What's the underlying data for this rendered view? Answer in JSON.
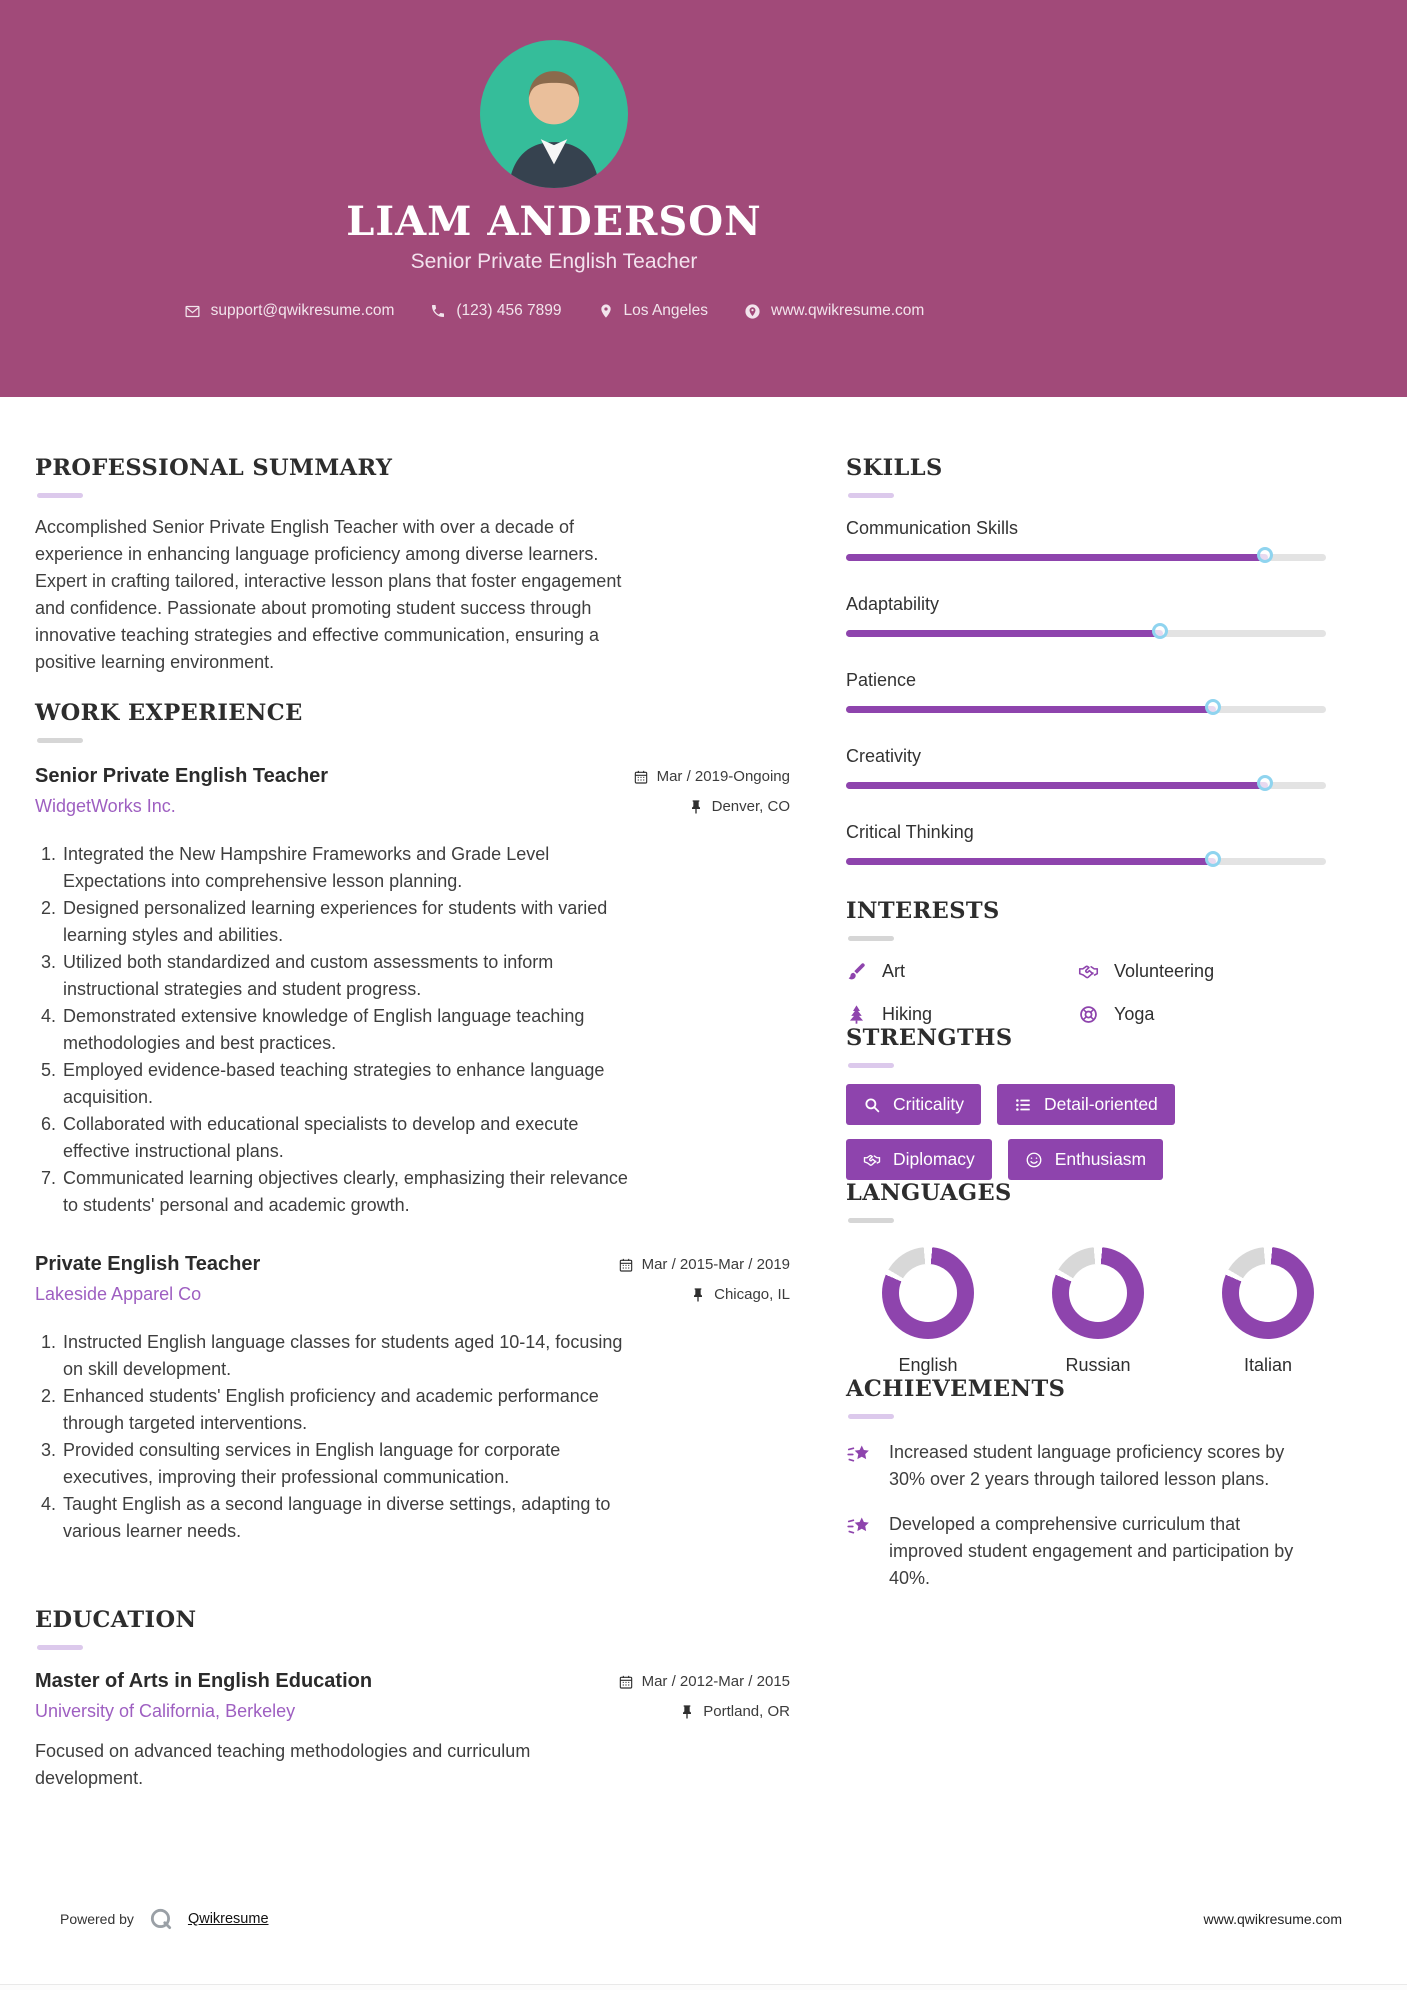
{
  "header": {
    "name": "LIAM ANDERSON",
    "title": "Senior Private English Teacher",
    "contact": {
      "email": "support@qwikresume.com",
      "phone": "(123) 456 7899",
      "location": "Los Angeles",
      "website": "www.qwikresume.com"
    }
  },
  "sections": {
    "summary": {
      "heading": "PROFESSIONAL SUMMARY",
      "text": "Accomplished Senior Private English Teacher with over a decade of experience in enhancing language proficiency among diverse learners. Expert in crafting tailored, interactive lesson plans that foster engagement and confidence. Passionate about promoting student success through innovative teaching strategies and effective communication, ensuring a positive learning environment."
    },
    "experience": {
      "heading": "WORK EXPERIENCE",
      "jobs": [
        {
          "title": "Senior Private English Teacher",
          "company": "WidgetWorks Inc.",
          "date": "Mar / 2019-Ongoing",
          "location": "Denver, CO",
          "bullets": [
            "Integrated the New Hampshire Frameworks and Grade Level Expectations into comprehensive lesson planning.",
            "Designed personalized learning experiences for students with varied learning styles and abilities.",
            "Utilized both standardized and custom assessments to inform instructional strategies and student progress.",
            "Demonstrated extensive knowledge of English language teaching methodologies and best practices.",
            "Employed evidence-based teaching strategies to enhance language acquisition.",
            "Collaborated with educational specialists to develop and execute effective instructional plans.",
            "Communicated learning objectives clearly, emphasizing their relevance to students' personal and academic growth."
          ]
        },
        {
          "title": "Private English Teacher",
          "company": "Lakeside Apparel Co",
          "date": "Mar / 2015-Mar / 2019",
          "location": "Chicago, IL",
          "bullets": [
            "Instructed English language classes for students aged 10-14, focusing on skill development.",
            "Enhanced students' English proficiency and academic performance through targeted interventions.",
            "Provided consulting services in English language for corporate executives, improving their professional communication.",
            "Taught English as a second language in diverse settings, adapting to various learner needs."
          ]
        }
      ]
    },
    "education": {
      "heading": "EDUCATION",
      "degree": "Master of Arts in English Education",
      "school": "University of California, Berkeley",
      "date": "Mar / 2012-Mar / 2015",
      "location": "Portland, OR",
      "description": "Focused on advanced teaching methodologies and curriculum development."
    },
    "skills": {
      "heading": "SKILLS",
      "items": [
        {
          "name": "Communication Skills",
          "level": 88
        },
        {
          "name": "Adaptability",
          "level": 66
        },
        {
          "name": "Patience",
          "level": 77
        },
        {
          "name": "Creativity",
          "level": 88
        },
        {
          "name": "Critical Thinking",
          "level": 77
        }
      ]
    },
    "interests": {
      "heading": "INTERESTS",
      "items": [
        {
          "label": "Art",
          "icon": "brush-icon"
        },
        {
          "label": "Volunteering",
          "icon": "handshake-icon"
        },
        {
          "label": "Hiking",
          "icon": "tree-icon"
        },
        {
          "label": "Yoga",
          "icon": "lifebuoy-icon"
        }
      ]
    },
    "strengths": {
      "heading": "STRENGTHS",
      "items": [
        {
          "label": "Criticality",
          "icon": "search-icon"
        },
        {
          "label": "Detail-oriented",
          "icon": "list-icon"
        },
        {
          "label": "Diplomacy",
          "icon": "handshake-icon"
        },
        {
          "label": "Enthusiasm",
          "icon": "smiley-icon"
        }
      ]
    },
    "languages": {
      "heading": "LANGUAGES",
      "items": [
        {
          "name": "English",
          "level": 80
        },
        {
          "name": "Russian",
          "level": 80
        },
        {
          "name": "Italian",
          "level": 80
        }
      ]
    },
    "achievements": {
      "heading": "ACHIEVEMENTS",
      "items": [
        "Increased student language proficiency scores by 30% over 2 years through tailored lesson plans.",
        "Developed a comprehensive curriculum that improved student engagement and participation by 40%."
      ]
    }
  },
  "footer": {
    "powered_by": "Powered by",
    "brand": "Qwikresume",
    "website": "www.qwikresume.com"
  },
  "colors": {
    "header_bg": "#a14a79",
    "photo_bg": "#35bd9a",
    "accent": "#8e44ad",
    "company": "#9e5fc1",
    "knob_border": "#8fd4ef",
    "track": "#e3e3e3",
    "donut_gray": "#d8d8d8",
    "rule_lavender": "#dcc9ec",
    "rule_gray": "#d6d6d6"
  }
}
